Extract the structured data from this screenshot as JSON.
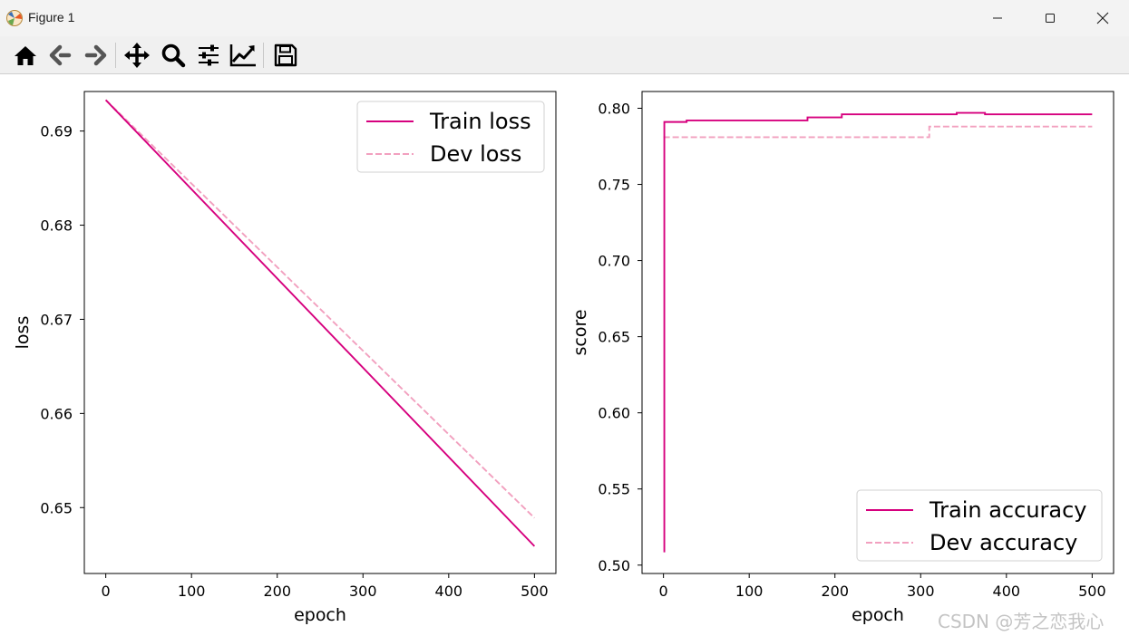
{
  "window": {
    "title": "Figure 1"
  },
  "toolbar": {
    "buttons": [
      {
        "name": "home",
        "icon": "home-icon"
      },
      {
        "name": "back",
        "icon": "arrow-left-icon"
      },
      {
        "name": "forward",
        "icon": "arrow-right-icon"
      },
      {
        "name": "pan",
        "icon": "move-icon"
      },
      {
        "name": "zoom",
        "icon": "magnifier-icon"
      },
      {
        "name": "configure-subplots",
        "icon": "sliders-icon"
      },
      {
        "name": "edit-axes",
        "icon": "line-chart-icon"
      },
      {
        "name": "save",
        "icon": "floppy-disk-icon"
      }
    ]
  },
  "colors": {
    "train": "#d6007e",
    "dev": "#f2a0bf"
  },
  "watermark": "CSDN @芳之恋我心",
  "chart_data": [
    {
      "type": "line",
      "xlabel": "epoch",
      "ylabel": "loss",
      "xlim": [
        -25,
        525
      ],
      "ylim": [
        0.643,
        0.6942
      ],
      "xticks": [
        0,
        100,
        200,
        300,
        400,
        500
      ],
      "xtick_labels": [
        "0",
        "100",
        "200",
        "300",
        "400",
        "500"
      ],
      "yticks": [
        0.65,
        0.66,
        0.67,
        0.68,
        0.69
      ],
      "ytick_labels": [
        "0.65",
        "0.66",
        "0.67",
        "0.68",
        "0.69"
      ],
      "legend_position": "top-right",
      "series": [
        {
          "name": "Train loss",
          "style": "solid",
          "color": "#d6007e",
          "x": [
            0,
            500
          ],
          "y": [
            0.6933,
            0.6459
          ]
        },
        {
          "name": "Dev loss",
          "style": "dashed",
          "color": "#f2a0bf",
          "x": [
            0,
            500
          ],
          "y": [
            0.6933,
            0.6489
          ]
        }
      ]
    },
    {
      "type": "line",
      "xlabel": "epoch",
      "ylabel": "score",
      "xlim": [
        -25,
        525
      ],
      "ylim": [
        0.4945,
        0.811
      ],
      "xticks": [
        0,
        100,
        200,
        300,
        400,
        500
      ],
      "xtick_labels": [
        "0",
        "100",
        "200",
        "300",
        "400",
        "500"
      ],
      "yticks": [
        0.5,
        0.55,
        0.6,
        0.65,
        0.7,
        0.75,
        0.8
      ],
      "ytick_labels": [
        "0.50",
        "0.55",
        "0.60",
        "0.65",
        "0.70",
        "0.75",
        "0.80"
      ],
      "legend_position": "bottom-right",
      "series": [
        {
          "name": "Train accuracy",
          "style": "solid",
          "color": "#d6007e",
          "step": true,
          "x": [
            0,
            1,
            27,
            168,
            208,
            342,
            375,
            500
          ],
          "y": [
            0.509,
            0.791,
            0.792,
            0.794,
            0.796,
            0.797,
            0.796,
            0.796
          ]
        },
        {
          "name": "Dev accuracy",
          "style": "dashed",
          "color": "#f2a0bf",
          "step": true,
          "x": [
            0,
            1,
            310,
            310,
            500
          ],
          "y": [
            0.781,
            0.781,
            0.781,
            0.788,
            0.788
          ]
        }
      ]
    }
  ]
}
